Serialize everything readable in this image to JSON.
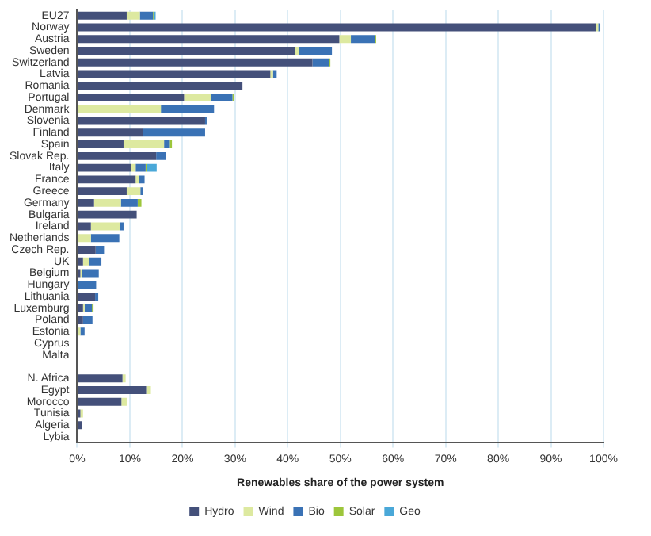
{
  "chart_data": {
    "type": "bar",
    "orientation": "horizontal",
    "stacked": true,
    "xlabel": "Renewables share of the power system",
    "categories": [
      "EU27",
      "Norway",
      "Austria",
      "Sweden",
      "Switzerland",
      "Latvia",
      "Romania",
      "Portugal",
      "Denmark",
      "Slovenia",
      "Finland",
      "Spain",
      "Slovak Rep.",
      "Italy",
      "France",
      "Greece",
      "Germany",
      "Bulgaria",
      "Ireland",
      "Netherlands",
      "Czech Rep.",
      "UK",
      "Belgium",
      "Hungary",
      "Lithuania",
      "Luxemburg",
      "Poland",
      "Estonia",
      "Cyprus",
      "Malta",
      null,
      "N. Africa",
      "Egypt",
      "Morocco",
      "Tunisia",
      "Algeria",
      "Lybia"
    ],
    "series": [
      {
        "name": "Hydro",
        "color": "#44507a",
        "values": [
          9.4,
          98.5,
          49.8,
          41.4,
          44.7,
          36.7,
          31.4,
          20.3,
          0,
          24.3,
          12.5,
          8.8,
          15.0,
          10.3,
          11.1,
          9.4,
          3.2,
          11.3,
          2.6,
          0,
          3.5,
          1.1,
          0.6,
          null,
          3.4,
          1.1,
          1.1,
          0,
          0,
          0,
          null,
          8.6,
          13.1,
          8.4,
          0.6,
          0.9,
          0
        ]
      },
      {
        "name": "Wind",
        "color": "#dde9a0",
        "values": [
          2.5,
          0.5,
          2.2,
          0.8,
          0,
          0.5,
          0,
          5.2,
          15.9,
          0,
          0,
          7.7,
          0,
          0.8,
          0.6,
          2.6,
          5.1,
          0,
          5.6,
          2.6,
          0,
          1.1,
          0.3,
          0,
          0,
          0.3,
          0,
          0.6,
          0,
          0,
          null,
          0.6,
          0.9,
          1.0,
          0.5,
          0,
          0
        ]
      },
      {
        "name": "Bio",
        "color": "#3a72b5",
        "values": [
          2.5,
          0.4,
          4.6,
          6.2,
          3.2,
          0.7,
          0,
          4.0,
          10.1,
          0.3,
          11.8,
          1.1,
          1.8,
          1.9,
          1.1,
          0.5,
          3.2,
          0,
          0.6,
          5.4,
          1.6,
          2.4,
          3.2,
          3.6,
          0.6,
          1.4,
          1.8,
          0.8,
          0,
          0,
          null,
          0,
          0,
          0,
          0,
          0,
          0
        ]
      },
      {
        "name": "Solar",
        "color": "#9dc63b",
        "values": [
          0.2,
          0,
          0.2,
          0,
          0.2,
          0,
          0,
          0.3,
          0,
          0,
          0,
          0.4,
          0,
          0.3,
          0,
          0,
          0.7,
          0,
          0,
          0,
          0,
          0,
          0,
          0,
          0,
          0.3,
          0,
          0,
          0,
          0,
          null,
          0,
          0,
          0,
          0,
          0,
          0
        ]
      },
      {
        "name": "Geo",
        "color": "#4aa8d8",
        "values": [
          0.3,
          0,
          0,
          0,
          0,
          0,
          0,
          0,
          0,
          0,
          0,
          0,
          0,
          1.8,
          0,
          0,
          0,
          0,
          0,
          0,
          0,
          0,
          0,
          0,
          0,
          0,
          0,
          0,
          0,
          0,
          null,
          0,
          0,
          0,
          0,
          0,
          0
        ]
      }
    ],
    "xlim": [
      0,
      100
    ],
    "xticks": [
      {
        "value": 0,
        "label": "0%"
      },
      {
        "value": 10,
        "label": "10%"
      },
      {
        "value": 20,
        "label": "20%"
      },
      {
        "value": 30,
        "label": "30%"
      },
      {
        "value": 40,
        "label": "40%"
      },
      {
        "value": 50,
        "label": "50%"
      },
      {
        "value": 60,
        "label": "60%"
      },
      {
        "value": 70,
        "label": "70%"
      },
      {
        "value": 80,
        "label": "80%"
      },
      {
        "value": 90,
        "label": "90%"
      },
      {
        "value": 100,
        "label": "100%"
      }
    ],
    "grid": "x",
    "legend": "bottom"
  }
}
